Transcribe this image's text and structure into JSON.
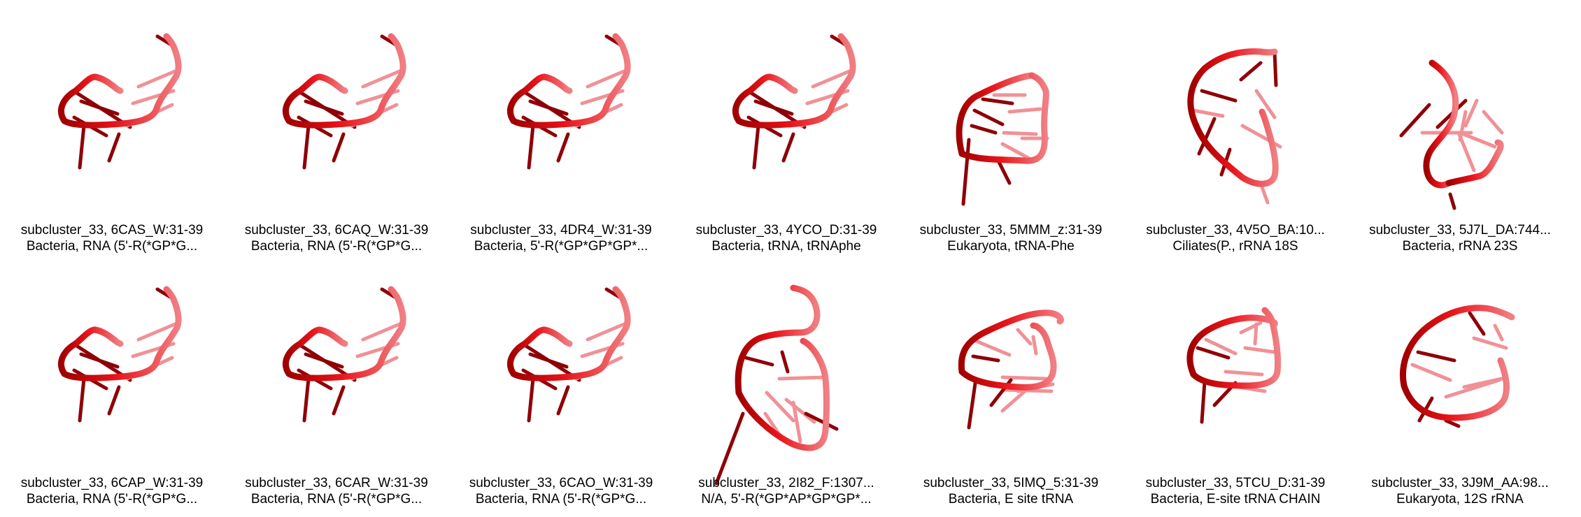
{
  "colors": {
    "backbone_dark": "#a00000",
    "backbone": "#e8141a",
    "backbone_light": "#f07f83",
    "base_dark": "#8e0008",
    "base": "#d8141c",
    "base_light": "#f09196"
  },
  "rows": [
    [
      {
        "id": "6CAS_W",
        "line1": "subcluster_33, 6CAS_W:31-39",
        "line2": "Bacteria, RNA (5'-R(*GP*G...",
        "shape": "A"
      },
      {
        "id": "6CAQ_W",
        "line1": "subcluster_33, 6CAQ_W:31-39",
        "line2": "Bacteria, RNA (5'-R(*GP*G...",
        "shape": "A"
      },
      {
        "id": "4DR4_W",
        "line1": "subcluster_33, 4DR4_W:31-39",
        "line2": "Bacteria, 5'-R(*GP*GP*GP*...",
        "shape": "A"
      },
      {
        "id": "4YCO_D",
        "line1": "subcluster_33, 4YCO_D:31-39",
        "line2": "Bacteria, tRNA, tRNAphe",
        "shape": "A"
      },
      {
        "id": "5MMM_z",
        "line1": "subcluster_33, 5MMM_z:31-39",
        "line2": "Eukaryota, tRNA-Phe",
        "shape": "B"
      },
      {
        "id": "4V5O_BA",
        "line1": "subcluster_33, 4V5O_BA:10...",
        "line2": "Ciliates(P., rRNA 18S",
        "shape": "C"
      },
      {
        "id": "5J7L_DA",
        "line1": "subcluster_33, 5J7L_DA:744...",
        "line2": "Bacteria, rRNA 23S",
        "shape": "D"
      }
    ],
    [
      {
        "id": "6CAP_W",
        "line1": "subcluster_33, 6CAP_W:31-39",
        "line2": "Bacteria, RNA (5'-R(*GP*G...",
        "shape": "A"
      },
      {
        "id": "6CAR_W",
        "line1": "subcluster_33, 6CAR_W:31-39",
        "line2": "Bacteria, RNA (5'-R(*GP*G...",
        "shape": "A"
      },
      {
        "id": "6CAO_W",
        "line1": "subcluster_33, 6CAO_W:31-39",
        "line2": "Bacteria, RNA (5'-R(*GP*G...",
        "shape": "A"
      },
      {
        "id": "2I82_F",
        "line1": "subcluster_33, 2I82_F:1307...",
        "line2": "N/A, 5'-R(*GP*AP*GP*GP*...",
        "shape": "E"
      },
      {
        "id": "5IMQ_5",
        "line1": "subcluster_33, 5IMQ_5:31-39",
        "line2": "Bacteria, E site tRNA",
        "shape": "F"
      },
      {
        "id": "5TCU_D",
        "line1": "subcluster_33, 5TCU_D:31-39",
        "line2": "Bacteria, E-site tRNA CHAIN",
        "shape": "G"
      },
      {
        "id": "3J9M_AA",
        "line1": "subcluster_33, 3J9M_AA:98...",
        "line2": "Eukaryota, 12S rRNA",
        "shape": "H"
      }
    ]
  ]
}
